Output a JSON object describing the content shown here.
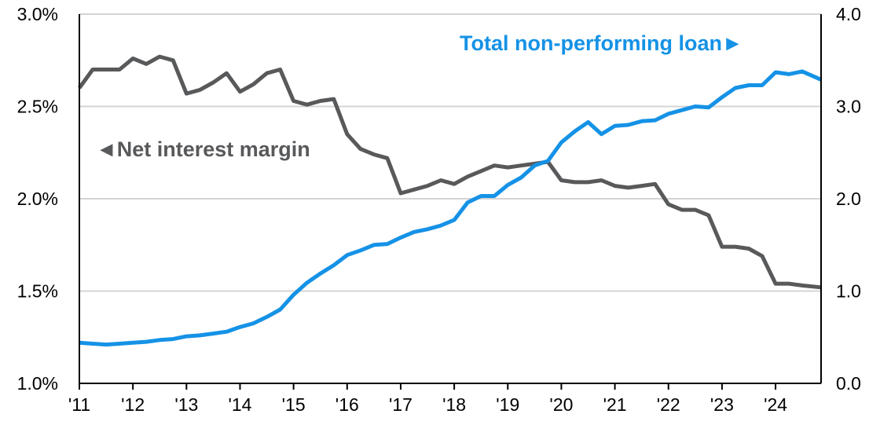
{
  "chart_data": {
    "type": "line",
    "title": "",
    "xlabel": "",
    "y_left": {
      "label": "",
      "ylim": [
        1.0,
        3.0
      ],
      "ticks": [
        "1.0%",
        "1.5%",
        "2.0%",
        "2.5%",
        "3.0%"
      ]
    },
    "y_right": {
      "label": "",
      "ylim": [
        0.0,
        4.0
      ],
      "ticks": [
        "0.0",
        "1.0",
        "2.0",
        "3.0",
        "4.0"
      ]
    },
    "x_range": [
      2011.0,
      2024.85
    ],
    "x_ticks": [
      "'11",
      "'12",
      "'13",
      "'14",
      "'15",
      "'16",
      "'17",
      "'18",
      "'19",
      "'20",
      "'21",
      "'22",
      "'23",
      "'24"
    ],
    "grid": "horizontal",
    "annotations": {
      "nim_label": "◄Net interest margin",
      "npl_label": "Total non-performing loan►"
    },
    "colors": {
      "nim": "#58595b",
      "npl": "#1592e6",
      "grid": "#d4d4d4",
      "axis": "#000000"
    },
    "series": [
      {
        "name": "Net interest margin",
        "axis": "left",
        "color": "#58595b",
        "points": [
          [
            2011.0,
            2.6
          ],
          [
            2011.25,
            2.7
          ],
          [
            2011.5,
            2.7
          ],
          [
            2011.75,
            2.7
          ],
          [
            2012.0,
            2.76
          ],
          [
            2012.25,
            2.73
          ],
          [
            2012.5,
            2.77
          ],
          [
            2012.75,
            2.75
          ],
          [
            2013.0,
            2.57
          ],
          [
            2013.25,
            2.59
          ],
          [
            2013.5,
            2.63
          ],
          [
            2013.75,
            2.68
          ],
          [
            2014.0,
            2.58
          ],
          [
            2014.25,
            2.62
          ],
          [
            2014.5,
            2.68
          ],
          [
            2014.75,
            2.7
          ],
          [
            2015.0,
            2.53
          ],
          [
            2015.25,
            2.51
          ],
          [
            2015.5,
            2.53
          ],
          [
            2015.75,
            2.54
          ],
          [
            2016.0,
            2.35
          ],
          [
            2016.25,
            2.27
          ],
          [
            2016.5,
            2.24
          ],
          [
            2016.75,
            2.22
          ],
          [
            2017.0,
            2.03
          ],
          [
            2017.25,
            2.05
          ],
          [
            2017.5,
            2.07
          ],
          [
            2017.75,
            2.1
          ],
          [
            2018.0,
            2.08
          ],
          [
            2018.25,
            2.12
          ],
          [
            2018.5,
            2.15
          ],
          [
            2018.75,
            2.18
          ],
          [
            2019.0,
            2.17
          ],
          [
            2019.25,
            2.18
          ],
          [
            2019.5,
            2.19
          ],
          [
            2019.75,
            2.2
          ],
          [
            2020.0,
            2.1
          ],
          [
            2020.25,
            2.09
          ],
          [
            2020.5,
            2.09
          ],
          [
            2020.75,
            2.1
          ],
          [
            2021.0,
            2.07
          ],
          [
            2021.25,
            2.06
          ],
          [
            2021.5,
            2.07
          ],
          [
            2021.75,
            2.08
          ],
          [
            2022.0,
            1.97
          ],
          [
            2022.25,
            1.94
          ],
          [
            2022.5,
            1.94
          ],
          [
            2022.75,
            1.91
          ],
          [
            2023.0,
            1.74
          ],
          [
            2023.25,
            1.74
          ],
          [
            2023.5,
            1.73
          ],
          [
            2023.75,
            1.69
          ],
          [
            2024.0,
            1.54
          ],
          [
            2024.25,
            1.54
          ],
          [
            2024.5,
            1.53
          ],
          [
            2024.85,
            1.52
          ]
        ]
      },
      {
        "name": "Total non-performing loan",
        "axis": "right",
        "color": "#1592e6",
        "points": [
          [
            2011.0,
            0.44
          ],
          [
            2011.25,
            0.43
          ],
          [
            2011.5,
            0.42
          ],
          [
            2011.75,
            0.43
          ],
          [
            2012.0,
            0.44
          ],
          [
            2012.25,
            0.45
          ],
          [
            2012.5,
            0.47
          ],
          [
            2012.75,
            0.48
          ],
          [
            2013.0,
            0.51
          ],
          [
            2013.25,
            0.52
          ],
          [
            2013.5,
            0.54
          ],
          [
            2013.75,
            0.56
          ],
          [
            2014.0,
            0.61
          ],
          [
            2014.25,
            0.65
          ],
          [
            2014.5,
            0.72
          ],
          [
            2014.75,
            0.8
          ],
          [
            2015.0,
            0.96
          ],
          [
            2015.25,
            1.09
          ],
          [
            2015.5,
            1.19
          ],
          [
            2015.75,
            1.28
          ],
          [
            2016.0,
            1.39
          ],
          [
            2016.25,
            1.44
          ],
          [
            2016.5,
            1.5
          ],
          [
            2016.75,
            1.51
          ],
          [
            2017.0,
            1.58
          ],
          [
            2017.25,
            1.64
          ],
          [
            2017.5,
            1.67
          ],
          [
            2017.75,
            1.71
          ],
          [
            2018.0,
            1.77
          ],
          [
            2018.25,
            1.96
          ],
          [
            2018.5,
            2.03
          ],
          [
            2018.75,
            2.03
          ],
          [
            2019.0,
            2.15
          ],
          [
            2019.25,
            2.23
          ],
          [
            2019.5,
            2.36
          ],
          [
            2019.75,
            2.41
          ],
          [
            2020.0,
            2.61
          ],
          [
            2020.25,
            2.73
          ],
          [
            2020.5,
            2.83
          ],
          [
            2020.75,
            2.7
          ],
          [
            2021.0,
            2.79
          ],
          [
            2021.25,
            2.8
          ],
          [
            2021.5,
            2.84
          ],
          [
            2021.75,
            2.85
          ],
          [
            2022.0,
            2.92
          ],
          [
            2022.25,
            2.96
          ],
          [
            2022.5,
            3.0
          ],
          [
            2022.75,
            2.99
          ],
          [
            2023.0,
            3.1
          ],
          [
            2023.25,
            3.2
          ],
          [
            2023.5,
            3.23
          ],
          [
            2023.75,
            3.23
          ],
          [
            2024.0,
            3.37
          ],
          [
            2024.25,
            3.35
          ],
          [
            2024.5,
            3.38
          ],
          [
            2024.85,
            3.29
          ]
        ]
      }
    ]
  }
}
